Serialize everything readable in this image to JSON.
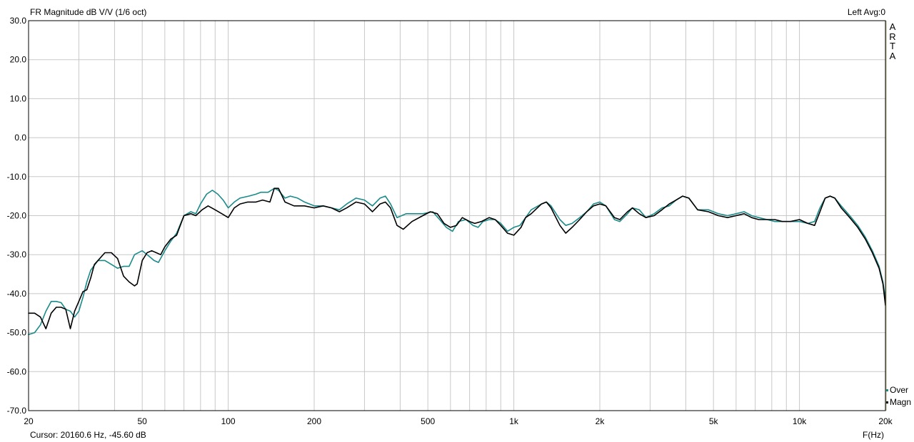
{
  "header": {
    "title": "FR Magnitude dB V/V (1/6 oct)",
    "right_info": "Left  Avg:0"
  },
  "footer": {
    "cursor": "Cursor: 20160.6 Hz, -45.60 dB",
    "x_unit": "F(Hz)"
  },
  "logo": {
    "letters": [
      "A",
      "R",
      "T",
      "A"
    ]
  },
  "colors": {
    "background": "#ffffff",
    "grid": "#c8c8c8",
    "axis": "#000000",
    "series_over": "#1a8a8a",
    "series_magn": "#000000",
    "right_edge": "#b9b38a"
  },
  "chart_data": {
    "type": "line",
    "title": "FR Magnitude dB V/V (1/6 oct)",
    "xlabel": "F(Hz)",
    "ylabel": "",
    "x_scale": "log",
    "xlim": [
      20,
      20000
    ],
    "ylim": [
      -70,
      30
    ],
    "grid": true,
    "legend_position": "bottom-right",
    "x_ticks": [
      20,
      50,
      100,
      200,
      500,
      1000,
      2000,
      5000,
      10000,
      20000
    ],
    "x_tick_labels": [
      "20",
      "50",
      "100",
      "200",
      "500",
      "1k",
      "2k",
      "5k",
      "10k",
      "20k"
    ],
    "y_ticks": [
      30,
      20,
      10,
      0,
      -10,
      -20,
      -30,
      -40,
      -50,
      -60,
      -70
    ],
    "y_tick_labels": [
      "30.0",
      "20.0",
      "10.0",
      "0.0",
      "-10.0",
      "-20.0",
      "-30.0",
      "-40.0",
      "-50.0",
      "-60.0",
      "-70.0"
    ],
    "series": [
      {
        "name": "Over",
        "color": "#1a8a8a",
        "points": [
          [
            20,
            -50.5
          ],
          [
            21,
            -50
          ],
          [
            22,
            -48
          ],
          [
            23,
            -44.5
          ],
          [
            24,
            -42
          ],
          [
            25,
            -42
          ],
          [
            26,
            -42.3
          ],
          [
            27,
            -44
          ],
          [
            28,
            -44.5
          ],
          [
            29,
            -46
          ],
          [
            30,
            -44.5
          ],
          [
            31,
            -41
          ],
          [
            32,
            -37
          ],
          [
            33,
            -34
          ],
          [
            35,
            -31.5
          ],
          [
            37,
            -31.5
          ],
          [
            39,
            -32.5
          ],
          [
            41,
            -33.5
          ],
          [
            43,
            -33
          ],
          [
            45,
            -33
          ],
          [
            47,
            -30
          ],
          [
            50,
            -29
          ],
          [
            53,
            -30.5
          ],
          [
            55,
            -31.5
          ],
          [
            57,
            -32
          ],
          [
            60,
            -29
          ],
          [
            63,
            -26.5
          ],
          [
            66,
            -24.5
          ],
          [
            70,
            -20
          ],
          [
            74,
            -19
          ],
          [
            77,
            -19.5
          ],
          [
            80,
            -17
          ],
          [
            84,
            -14.5
          ],
          [
            88,
            -13.5
          ],
          [
            92,
            -14.5
          ],
          [
            96,
            -16
          ],
          [
            100,
            -18
          ],
          [
            105,
            -16.5
          ],
          [
            110,
            -15.5
          ],
          [
            118,
            -15
          ],
          [
            125,
            -14.5
          ],
          [
            130,
            -14
          ],
          [
            138,
            -14
          ],
          [
            145,
            -13
          ],
          [
            150,
            -13.5
          ],
          [
            158,
            -15.5
          ],
          [
            165,
            -15
          ],
          [
            175,
            -15.5
          ],
          [
            185,
            -16.5
          ],
          [
            200,
            -17.5
          ],
          [
            215,
            -17.5
          ],
          [
            230,
            -18
          ],
          [
            245,
            -18.5
          ],
          [
            260,
            -17
          ],
          [
            280,
            -15.5
          ],
          [
            300,
            -16
          ],
          [
            320,
            -17.5
          ],
          [
            340,
            -15.5
          ],
          [
            355,
            -15
          ],
          [
            370,
            -17
          ],
          [
            390,
            -20.5
          ],
          [
            420,
            -19.5
          ],
          [
            450,
            -19.5
          ],
          [
            480,
            -19.5
          ],
          [
            520,
            -19
          ],
          [
            550,
            -21
          ],
          [
            580,
            -23
          ],
          [
            610,
            -24
          ],
          [
            640,
            -21.5
          ],
          [
            680,
            -21
          ],
          [
            720,
            -22.5
          ],
          [
            750,
            -23
          ],
          [
            780,
            -21.5
          ],
          [
            820,
            -21
          ],
          [
            860,
            -21
          ],
          [
            900,
            -22
          ],
          [
            950,
            -24
          ],
          [
            1000,
            -23
          ],
          [
            1050,
            -22.5
          ],
          [
            1100,
            -20.5
          ],
          [
            1150,
            -18.5
          ],
          [
            1250,
            -17
          ],
          [
            1300,
            -16.5
          ],
          [
            1350,
            -17.5
          ],
          [
            1450,
            -21
          ],
          [
            1520,
            -22.5
          ],
          [
            1600,
            -22
          ],
          [
            1700,
            -20.5
          ],
          [
            1800,
            -19
          ],
          [
            1900,
            -17
          ],
          [
            2000,
            -16.5
          ],
          [
            2100,
            -17.5
          ],
          [
            2250,
            -21
          ],
          [
            2350,
            -21.5
          ],
          [
            2500,
            -19.5
          ],
          [
            2600,
            -18
          ],
          [
            2750,
            -18.5
          ],
          [
            2900,
            -20.5
          ],
          [
            3100,
            -19.5
          ],
          [
            3300,
            -18
          ],
          [
            3500,
            -17.5
          ],
          [
            3700,
            -16
          ],
          [
            3900,
            -15
          ],
          [
            4100,
            -15.5
          ],
          [
            4400,
            -18.5
          ],
          [
            4800,
            -18.5
          ],
          [
            5200,
            -19.5
          ],
          [
            5600,
            -20
          ],
          [
            6000,
            -19.5
          ],
          [
            6400,
            -19
          ],
          [
            6800,
            -20
          ],
          [
            7200,
            -20.5
          ],
          [
            7700,
            -21
          ],
          [
            8200,
            -21.5
          ],
          [
            8700,
            -21.5
          ],
          [
            9300,
            -21.5
          ],
          [
            10000,
            -21.5
          ],
          [
            10700,
            -22
          ],
          [
            11300,
            -21.5
          ],
          [
            11800,
            -18
          ],
          [
            12300,
            -15.5
          ],
          [
            12800,
            -15
          ],
          [
            13300,
            -15.5
          ],
          [
            14000,
            -17.5
          ],
          [
            15000,
            -20
          ],
          [
            16000,
            -22.5
          ],
          [
            17000,
            -25.5
          ],
          [
            18000,
            -29
          ],
          [
            19000,
            -33
          ],
          [
            19600,
            -37
          ],
          [
            20000,
            -41.5
          ]
        ]
      },
      {
        "name": "Magn",
        "color": "#000000",
        "points": [
          [
            20,
            -45
          ],
          [
            21,
            -45
          ],
          [
            22,
            -46
          ],
          [
            23,
            -49
          ],
          [
            24,
            -45
          ],
          [
            25,
            -43.5
          ],
          [
            26,
            -43.5
          ],
          [
            27,
            -44
          ],
          [
            28,
            -49
          ],
          [
            29,
            -44.5
          ],
          [
            30,
            -42
          ],
          [
            31,
            -39.5
          ],
          [
            32,
            -39
          ],
          [
            33,
            -36
          ],
          [
            34,
            -32.5
          ],
          [
            35,
            -31.5
          ],
          [
            36,
            -30.5
          ],
          [
            37,
            -29.5
          ],
          [
            39,
            -29.5
          ],
          [
            41,
            -31
          ],
          [
            43,
            -35.5
          ],
          [
            45,
            -37
          ],
          [
            47,
            -38
          ],
          [
            48,
            -37.5
          ],
          [
            50,
            -31.5
          ],
          [
            52,
            -29.5
          ],
          [
            54,
            -29
          ],
          [
            56,
            -29.5
          ],
          [
            58,
            -30
          ],
          [
            60,
            -28
          ],
          [
            63,
            -26
          ],
          [
            66,
            -25
          ],
          [
            70,
            -20
          ],
          [
            74,
            -19.5
          ],
          [
            77,
            -20
          ],
          [
            81,
            -18.5
          ],
          [
            85,
            -17.5
          ],
          [
            90,
            -18.5
          ],
          [
            95,
            -19.5
          ],
          [
            100,
            -20.5
          ],
          [
            105,
            -18
          ],
          [
            110,
            -17
          ],
          [
            117,
            -16.5
          ],
          [
            125,
            -16.5
          ],
          [
            132,
            -16
          ],
          [
            140,
            -16.5
          ],
          [
            145,
            -13
          ],
          [
            150,
            -13
          ],
          [
            158,
            -16.5
          ],
          [
            170,
            -17.5
          ],
          [
            185,
            -17.5
          ],
          [
            200,
            -18
          ],
          [
            215,
            -17.5
          ],
          [
            230,
            -18
          ],
          [
            245,
            -19
          ],
          [
            260,
            -18
          ],
          [
            280,
            -16.5
          ],
          [
            300,
            -17
          ],
          [
            320,
            -19
          ],
          [
            340,
            -17
          ],
          [
            355,
            -16.5
          ],
          [
            370,
            -18
          ],
          [
            390,
            -22.5
          ],
          [
            410,
            -23.5
          ],
          [
            440,
            -21.5
          ],
          [
            480,
            -20
          ],
          [
            510,
            -19
          ],
          [
            540,
            -19.5
          ],
          [
            570,
            -22
          ],
          [
            600,
            -23
          ],
          [
            630,
            -22.5
          ],
          [
            660,
            -20.5
          ],
          [
            700,
            -21.5
          ],
          [
            730,
            -22
          ],
          [
            770,
            -21.5
          ],
          [
            820,
            -20.5
          ],
          [
            860,
            -21
          ],
          [
            900,
            -22.5
          ],
          [
            950,
            -24.5
          ],
          [
            1000,
            -25
          ],
          [
            1060,
            -23
          ],
          [
            1100,
            -20.5
          ],
          [
            1150,
            -19.5
          ],
          [
            1250,
            -17
          ],
          [
            1300,
            -16.5
          ],
          [
            1350,
            -18
          ],
          [
            1450,
            -22.5
          ],
          [
            1520,
            -24.5
          ],
          [
            1600,
            -23
          ],
          [
            1700,
            -21
          ],
          [
            1800,
            -19
          ],
          [
            1900,
            -17.5
          ],
          [
            2000,
            -17
          ],
          [
            2100,
            -17.5
          ],
          [
            2250,
            -20.5
          ],
          [
            2350,
            -21
          ],
          [
            2500,
            -19
          ],
          [
            2600,
            -18
          ],
          [
            2750,
            -19.5
          ],
          [
            2900,
            -20.5
          ],
          [
            3100,
            -20
          ],
          [
            3300,
            -18.5
          ],
          [
            3500,
            -17
          ],
          [
            3700,
            -16
          ],
          [
            3900,
            -15
          ],
          [
            4100,
            -15.5
          ],
          [
            4400,
            -18.5
          ],
          [
            4800,
            -19
          ],
          [
            5200,
            -20
          ],
          [
            5600,
            -20.5
          ],
          [
            6000,
            -20
          ],
          [
            6400,
            -19.5
          ],
          [
            6800,
            -20.5
          ],
          [
            7200,
            -21
          ],
          [
            7700,
            -21
          ],
          [
            8200,
            -21
          ],
          [
            8700,
            -21.5
          ],
          [
            9300,
            -21.5
          ],
          [
            10000,
            -21
          ],
          [
            10700,
            -22
          ],
          [
            11300,
            -22.5
          ],
          [
            11800,
            -19
          ],
          [
            12300,
            -15.5
          ],
          [
            12800,
            -15
          ],
          [
            13300,
            -15.5
          ],
          [
            14000,
            -18
          ],
          [
            15000,
            -20.5
          ],
          [
            16000,
            -23
          ],
          [
            17000,
            -26
          ],
          [
            18000,
            -29.5
          ],
          [
            19000,
            -33.5
          ],
          [
            19600,
            -37.5
          ],
          [
            20000,
            -43
          ]
        ]
      }
    ]
  }
}
